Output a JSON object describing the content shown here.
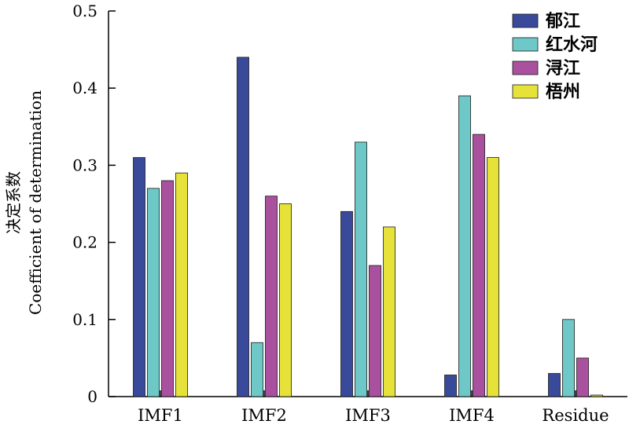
{
  "chart_data": {
    "type": "bar",
    "categories": [
      "IMF1",
      "IMF2",
      "IMF3",
      "IMF4",
      "Residue"
    ],
    "series": [
      {
        "name": "郁江",
        "color": "#3a4a9a",
        "values": [
          0.31,
          0.44,
          0.24,
          0.028,
          0.03
        ]
      },
      {
        "name": "红水河",
        "color": "#6ec8c8",
        "values": [
          0.27,
          0.07,
          0.33,
          0.39,
          0.1
        ]
      },
      {
        "name": "浔江",
        "color": "#a9519e",
        "values": [
          0.28,
          0.26,
          0.17,
          0.34,
          0.05
        ]
      },
      {
        "name": "梧州",
        "color": "#e6e23a",
        "values": [
          0.29,
          0.25,
          0.22,
          0.31,
          0.002
        ]
      }
    ],
    "ylabel_zh": "决定系数",
    "ylabel_en": "Coefficient of determination",
    "ylim": [
      0,
      0.5
    ],
    "yticks": [
      "0",
      "0.1",
      "0.2",
      "0.3",
      "0.4",
      "0.5"
    ],
    "legend_position": "top-right",
    "grid": false
  }
}
